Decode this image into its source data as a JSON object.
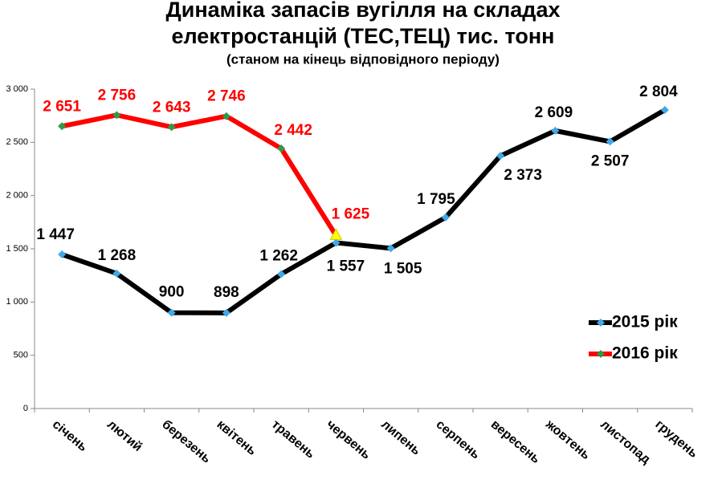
{
  "chart_data": {
    "type": "line",
    "title": [
      "Динаміка запасів вугілля на складах",
      "електростанцій (ТЕС,ТЕЦ) тис. тонн"
    ],
    "subtitle": "(станом на кінець відповідного періоду)",
    "categories": [
      "січень",
      "лютий",
      "березень",
      "квітень",
      "травень",
      "червень",
      "липень",
      "серпень",
      "вересень",
      "жовтень",
      "листопад",
      "грудень"
    ],
    "series": [
      {
        "name": "2015 рік",
        "color": "#000000",
        "marker_color": "#3fa9e8",
        "values": [
          1447,
          1268,
          900,
          898,
          1262,
          1557,
          1505,
          1795,
          2373,
          2609,
          2507,
          2804
        ],
        "value_labels": [
          "1 447",
          "1 268",
          "900",
          "898",
          "1 262",
          "1 557",
          "1 505",
          "1 795",
          "2 373",
          "2 609",
          "2 507",
          "2 804"
        ]
      },
      {
        "name": "2016 рік",
        "color": "#ff0000",
        "marker_color": "#2e9a4a",
        "values": [
          2651,
          2756,
          2643,
          2746,
          2442,
          1625,
          null,
          null,
          null,
          null,
          null,
          null
        ],
        "value_labels": [
          "2 651",
          "2 756",
          "2 643",
          "2 746",
          "2 442",
          "1 625",
          null,
          null,
          null,
          null,
          null,
          null
        ]
      }
    ],
    "ylim": [
      0,
      3000
    ],
    "yticks": [
      0,
      500,
      {
        "value": 1000,
        "label": "1 000"
      },
      {
        "value": 1500,
        "label": "1 500"
      },
      {
        "value": 2000,
        "label": "2 000"
      },
      {
        "value": 2500,
        "label": "2 500"
      },
      {
        "value": 3000,
        "label": "3 000"
      }
    ],
    "grid": false,
    "legend": "right"
  }
}
